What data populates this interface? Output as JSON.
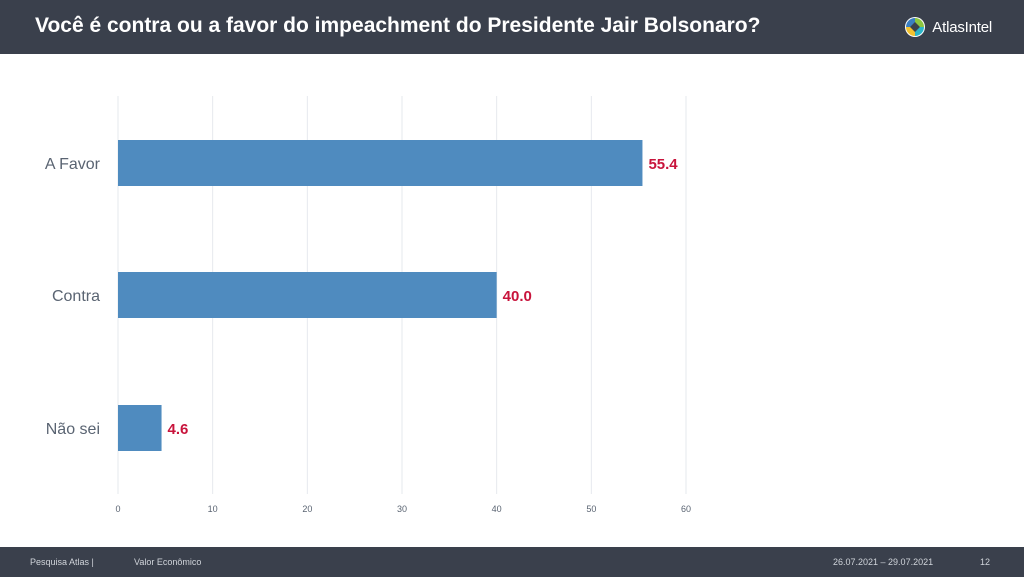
{
  "header": {
    "title": "Você é contra ou a favor do impeachment do Presidente Jair Bolsonaro?",
    "brand": "AtlasIntel"
  },
  "footer": {
    "source": "Pesquisa Atlas  |",
    "client": "Valor Econômico",
    "dates": "26.07.2021 – 29.07.2021",
    "page_number": "12"
  },
  "colors": {
    "header_bg": "#3a404c",
    "bar": "#4f8bbf",
    "value_label": "#c8143c",
    "gridline": "#e6e9ee"
  },
  "chart_data": {
    "type": "bar",
    "orientation": "horizontal",
    "title": "Você é contra ou a favor do impeachment do Presidente Jair Bolsonaro?",
    "categories": [
      "A Favor",
      "Contra",
      "Não sei"
    ],
    "values": [
      55.4,
      40.0,
      4.6
    ],
    "value_labels": [
      "55.4",
      "40.0",
      "4.6"
    ],
    "xlim": [
      0,
      60
    ],
    "xticks": [
      0,
      10,
      20,
      30,
      40,
      50,
      60
    ],
    "xlabel": "",
    "ylabel": "",
    "grid": true
  }
}
